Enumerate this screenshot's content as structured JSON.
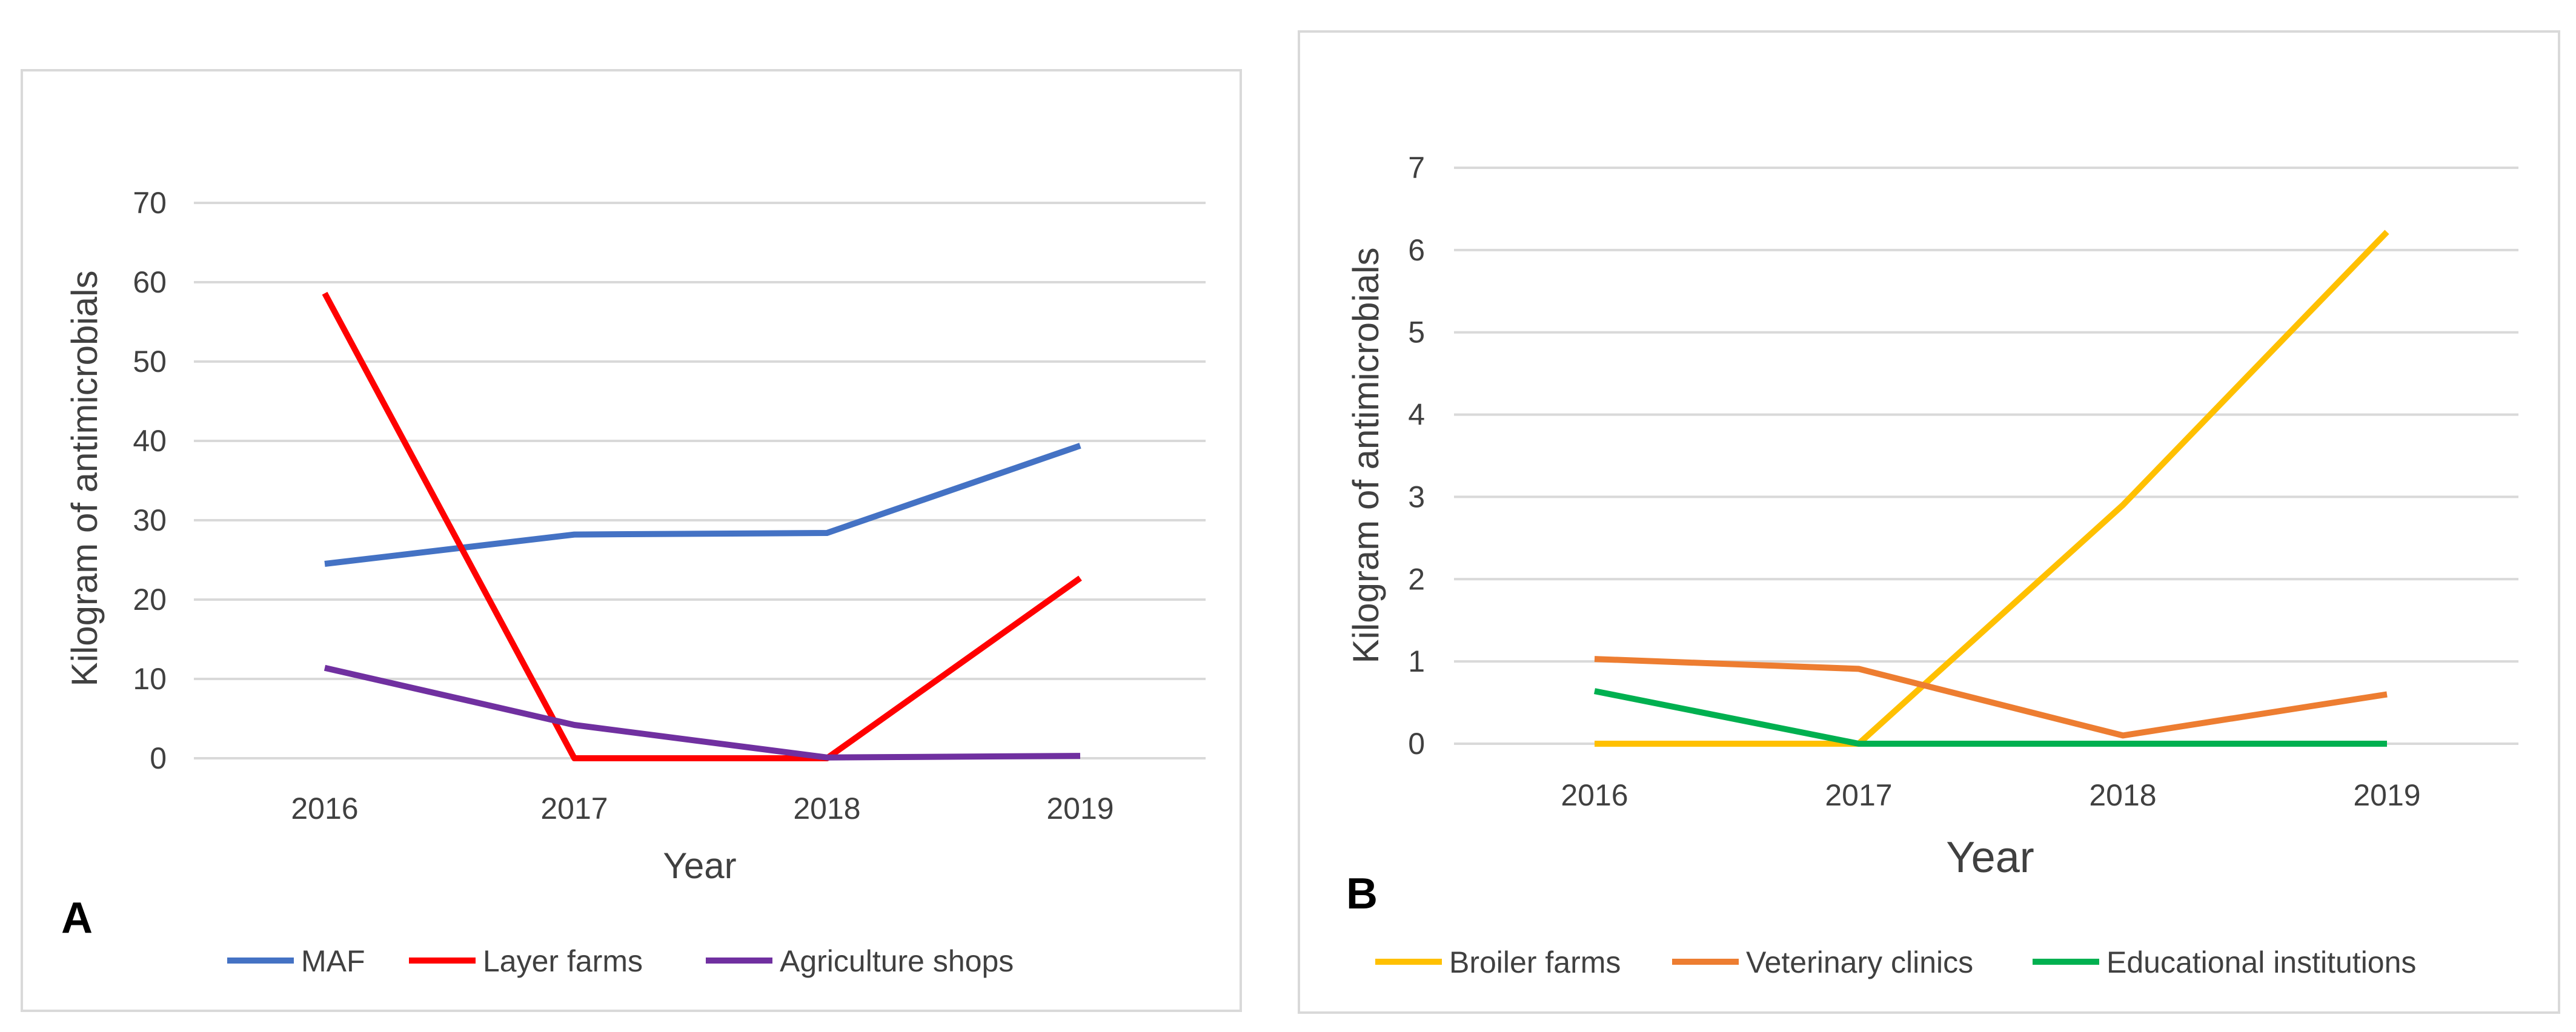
{
  "chart_data": [
    {
      "panel_label": "A",
      "type": "line",
      "categories": [
        "2016",
        "2017",
        "2018",
        "2019"
      ],
      "xlabel": "Year",
      "ylabel": "Kilogram of antimicrobials",
      "ylim": [
        0,
        70
      ],
      "yticks": [
        "0",
        "10",
        "20",
        "30",
        "40",
        "50",
        "60",
        "70"
      ],
      "grid": true,
      "legend_position": "bottom",
      "series": [
        {
          "name": "MAF",
          "color": "#4472C4",
          "values": [
            24.5,
            28.2,
            28.4,
            39.4
          ]
        },
        {
          "name": "Layer farms",
          "color": "#FF0000",
          "values": [
            58.6,
            0,
            0,
            22.7
          ]
        },
        {
          "name": "Agriculture shops",
          "color": "#7030A0",
          "values": [
            11.4,
            4.2,
            0.1,
            0.3
          ]
        }
      ]
    },
    {
      "panel_label": "B",
      "type": "line",
      "categories": [
        "2016",
        "2017",
        "2018",
        "2019"
      ],
      "xlabel": "Year",
      "ylabel": "Kilogram of antimicrobials",
      "ylim": [
        0,
        7
      ],
      "yticks": [
        "0",
        "1",
        "2",
        "3",
        "4",
        "5",
        "6",
        "7"
      ],
      "grid": true,
      "legend_position": "bottom",
      "series": [
        {
          "name": "Broiler farms",
          "color": "#FFC000",
          "values": [
            0,
            0,
            2.9,
            6.22
          ]
        },
        {
          "name": "Veterinary clinics",
          "color": "#ED7D31",
          "values": [
            1.03,
            0.91,
            0.1,
            0.6
          ]
        },
        {
          "name": "Educational institutions",
          "color": "#00B050",
          "values": [
            0.64,
            0,
            0,
            0
          ]
        }
      ]
    }
  ]
}
